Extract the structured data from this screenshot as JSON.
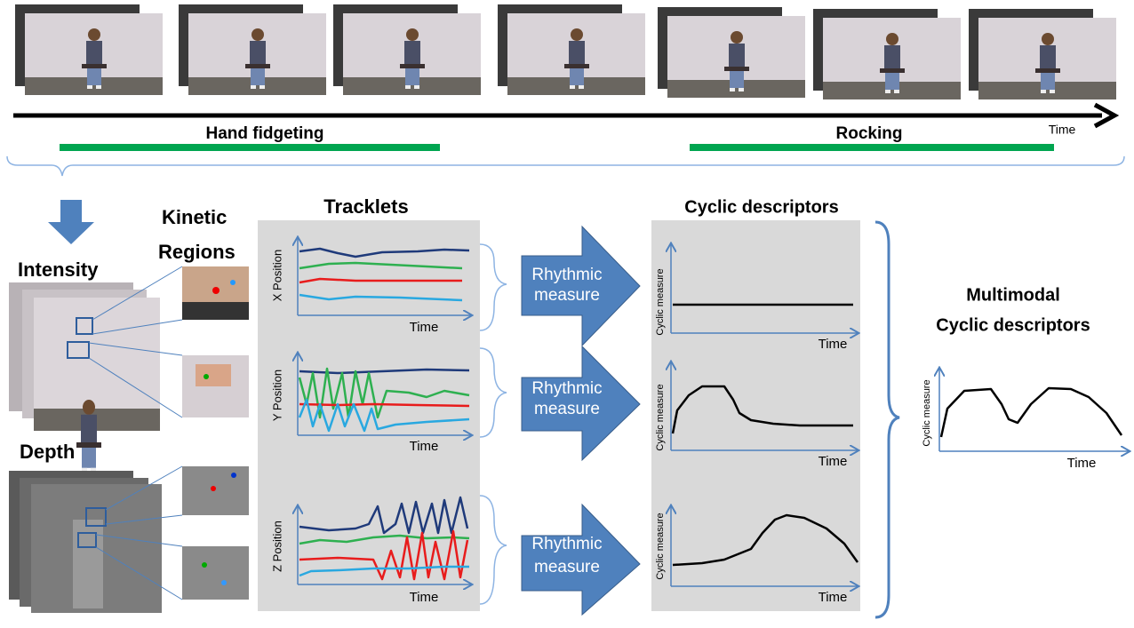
{
  "timeline": {
    "axis_label": "Time",
    "segments": [
      {
        "label": "Hand fidgeting"
      },
      {
        "label": "Rocking"
      }
    ]
  },
  "inputs": {
    "intensity": "Intensity",
    "depth": "Depth",
    "kinetic_regions": [
      "Kinetic",
      "Regions"
    ]
  },
  "tracklets": {
    "title": "Tracklets",
    "panels": [
      {
        "y_label": "X Position",
        "x_label": "Time"
      },
      {
        "y_label": "Y Position",
        "x_label": "Time"
      },
      {
        "y_label": "Z Position",
        "x_label": "Time"
      }
    ]
  },
  "rhythmic_measure": [
    [
      "Rhythmic",
      "measure"
    ],
    [
      "Rhythmic",
      "measure"
    ],
    [
      "Rhythmic",
      "measure"
    ]
  ],
  "cyclic": {
    "title": "Cyclic descriptors",
    "panels": [
      {
        "y_label": "Cyclic measure",
        "x_label": "Time"
      },
      {
        "y_label": "Cyclic measure",
        "x_label": "Time"
      },
      {
        "y_label": "Cyclic measure",
        "x_label": "Time"
      }
    ]
  },
  "multimodal": {
    "title": [
      "Multimodal",
      "Cyclic descriptors"
    ],
    "y_label": "Cyclic measure",
    "x_label": "Time"
  }
}
